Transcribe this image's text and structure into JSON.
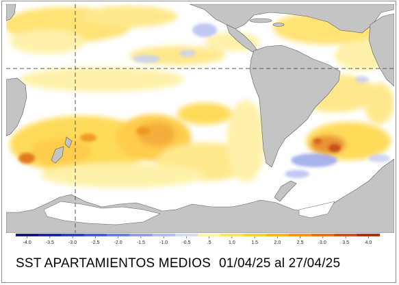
{
  "title": "SST APARTAMIENTOS MEDIOS",
  "date_range": "01/04/25 al 27/04/25",
  "legend": {
    "ticks": [
      "-4.0",
      "-3.5",
      "-3.0",
      "-2.5",
      "-2.0",
      "-1.5",
      "-1.0",
      "-0.5",
      ".5",
      "1.0",
      "1.5",
      "2.0",
      "2.5",
      "3.0",
      "3.5",
      "4.0"
    ],
    "colors": [
      "#101a7a",
      "#1c2aa0",
      "#2e40c0",
      "#4a5ed2",
      "#6a7ee0",
      "#8e9eea",
      "#b2bef2",
      "#d6dcf8",
      "#fff4a0",
      "#ffe566",
      "#ffd23a",
      "#ffb51e",
      "#f8931a",
      "#e6731c",
      "#cc5218",
      "#a83414"
    ]
  },
  "colors": {
    "land": "#c4c4c4",
    "ocean": "#ffffff",
    "warm_anomaly": "#ffd84a",
    "cold_anomaly": "#b6bef0"
  }
}
